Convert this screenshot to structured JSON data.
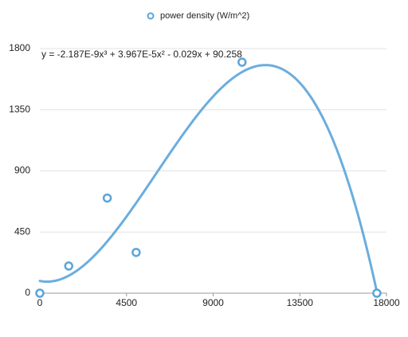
{
  "chart_data": {
    "type": "scatter",
    "series": [
      {
        "name": "power density (W/m^2)",
        "color": "#5ba5d8",
        "x": [
          0,
          1500,
          3500,
          5000,
          10500,
          17500
        ],
        "values": [
          0,
          200,
          700,
          300,
          1700,
          0
        ]
      }
    ],
    "trendline": {
      "type": "polynomial",
      "coefficients": [
        -2.187e-09,
        3.967e-05,
        -0.029,
        90.258
      ],
      "equation": "y = -2.187E-9x³ + 3.967E-5x² - 0.029x + 90.258",
      "color": "#6badde"
    },
    "xlim": [
      0,
      18000
    ],
    "xticks": [
      0,
      4500,
      9000,
      13500,
      18000
    ],
    "ylim": [
      0,
      1800
    ],
    "yticks": [
      0,
      450,
      900,
      1350,
      1800
    ],
    "grid": true,
    "legend": "top"
  }
}
